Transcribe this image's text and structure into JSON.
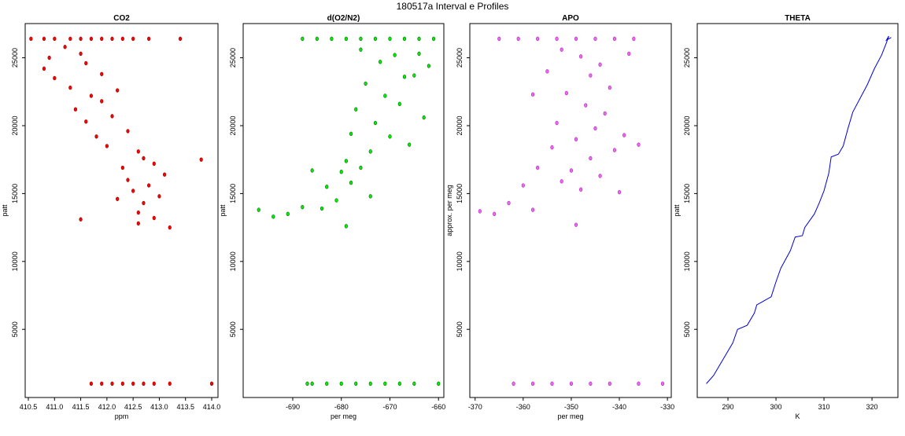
{
  "title": "180517a   Interval e Profiles",
  "chart_data": [
    {
      "type": "scatter",
      "title": "CO2",
      "xlabel": "ppm",
      "ylabel": "patt",
      "color": "#ff0000",
      "edgecolor": "#8b0000",
      "xlim": [
        410.44,
        414.12
      ],
      "ylim": [
        -20,
        27520
      ],
      "xticks": [
        410.5,
        {
          "value": 411,
          "label": "411.0"
        },
        411.5,
        {
          "value": 412,
          "label": "412.0"
        },
        412.5,
        {
          "value": 413,
          "label": "413.0"
        },
        413.5,
        {
          "value": 414,
          "label": "414.0"
        }
      ],
      "yticks": [
        5000,
        10000,
        15000,
        20000,
        25000
      ],
      "x": [
        410.55,
        410.8,
        411.0,
        411.3,
        411.5,
        411.7,
        411.9,
        412.1,
        412.3,
        412.5,
        412.8,
        413.4,
        411.2,
        410.9,
        411.5,
        410.8,
        411.6,
        411.0,
        411.9,
        411.3,
        411.7,
        412.2,
        411.4,
        411.9,
        411.6,
        412.1,
        411.8,
        412.4,
        412.0,
        412.6,
        412.7,
        412.3,
        412.9,
        412.4,
        412.8,
        413.1,
        412.5,
        412.2,
        412.7,
        413.0,
        412.6,
        412.9,
        413.2,
        412.6,
        411.5,
        413.8,
        411.7,
        411.9,
        412.1,
        412.3,
        412.5,
        412.7,
        412.9,
        413.2,
        414.0
      ],
      "y": [
        26400,
        26400,
        26400,
        26400,
        26400,
        26400,
        26400,
        26400,
        26400,
        26400,
        26400,
        26400,
        25800,
        25000,
        25300,
        24200,
        24600,
        23500,
        23800,
        22800,
        22200,
        22600,
        21200,
        21800,
        20300,
        20700,
        19200,
        19600,
        18500,
        18100,
        17600,
        16900,
        17200,
        16000,
        15600,
        16400,
        15200,
        14600,
        14300,
        14800,
        13600,
        13200,
        12500,
        12800,
        13100,
        17500,
        1000,
        1000,
        1000,
        1000,
        1000,
        1000,
        1000,
        1000,
        1000
      ]
    },
    {
      "type": "scatter",
      "title": "d(O2/N2)",
      "xlabel": "per meg",
      "ylabel": "patt",
      "color": "#00ee00",
      "edgecolor": "#006400",
      "xlim": [
        -700.2,
        -658.9
      ],
      "ylim": [
        -20,
        27520
      ],
      "xticks": [
        -690,
        -680,
        -670,
        -660
      ],
      "yticks": [
        5000,
        10000,
        15000,
        20000,
        25000
      ],
      "x": [
        -688,
        -685,
        -682,
        -679,
        -676,
        -673,
        -670,
        -667,
        -664,
        -661,
        -676,
        -669,
        -664,
        -662,
        -672,
        -667,
        -675,
        -665,
        -671,
        -677,
        -668,
        -673,
        -663,
        -678,
        -670,
        -666,
        -674,
        -679,
        -680,
        -676,
        -683,
        -678,
        -686,
        -681,
        -688,
        -691,
        -684,
        -694,
        -697,
        -679,
        -674,
        -687,
        -686,
        -683,
        -680,
        -677,
        -674,
        -671,
        -668,
        -665,
        -660
      ],
      "y": [
        26400,
        26400,
        26400,
        26400,
        26400,
        26400,
        26400,
        26400,
        26400,
        26400,
        25600,
        25200,
        25300,
        24400,
        24700,
        23600,
        23100,
        23700,
        22200,
        21200,
        21600,
        20200,
        20600,
        19400,
        19200,
        18600,
        18100,
        17400,
        16600,
        16900,
        15500,
        15800,
        16700,
        14500,
        14000,
        13500,
        13900,
        13300,
        13800,
        12600,
        14800,
        1000,
        1000,
        1000,
        1000,
        1000,
        1000,
        1000,
        1000,
        1000,
        1000
      ]
    },
    {
      "type": "scatter",
      "title": "APO",
      "xlabel": "per meg",
      "ylabel": "approx. per meg",
      "color": "#ee66ee",
      "edgecolor": "#aa22bb",
      "xlim": [
        -371.1,
        -329.2
      ],
      "ylim": [
        -20,
        27520
      ],
      "xticks": [
        -370,
        -360,
        -350,
        -340,
        -330
      ],
      "yticks": [
        5000,
        10000,
        15000,
        20000,
        25000
      ],
      "x": [
        -365,
        -361,
        -357,
        -353,
        -349,
        -345,
        -341,
        -337,
        -352,
        -348,
        -344,
        -338,
        -355,
        -346,
        -342,
        -351,
        -358,
        -347,
        -343,
        -353,
        -345,
        -339,
        -349,
        -354,
        -341,
        -336,
        -346,
        -350,
        -357,
        -344,
        -352,
        -348,
        -360,
        -340,
        -363,
        -366,
        -358,
        -369,
        -349,
        -362,
        -358,
        -354,
        -350,
        -346,
        -342,
        -336,
        -331
      ],
      "y": [
        26400,
        26400,
        26400,
        26400,
        26400,
        26400,
        26400,
        26400,
        25600,
        25100,
        24500,
        25300,
        24000,
        23700,
        22800,
        22400,
        22300,
        21500,
        20900,
        20200,
        19800,
        19300,
        19000,
        18400,
        18200,
        18600,
        17600,
        16700,
        16900,
        16300,
        15900,
        15300,
        15600,
        15100,
        14300,
        13500,
        13800,
        13700,
        12700,
        1000,
        1000,
        1000,
        1000,
        1000,
        1000,
        1000,
        1000
      ]
    },
    {
      "type": "line",
      "title": "THETA",
      "xlabel": "K",
      "ylabel": "patt",
      "color": "#0000dd",
      "xlim": [
        283.6,
        325.4
      ],
      "ylim": [
        -20,
        27520
      ],
      "xticks": [
        290,
        300,
        310,
        320
      ],
      "yticks": [
        5000,
        10000,
        15000,
        20000,
        25000
      ],
      "x": [
        285.5,
        287,
        289,
        291,
        292,
        294,
        295.5,
        296,
        297,
        299,
        300,
        301,
        303,
        304,
        305.5,
        306,
        308,
        309,
        310,
        311,
        311.5,
        313,
        314,
        315,
        316,
        317.5,
        319,
        320.5,
        322,
        323,
        323.5,
        323,
        324
      ],
      "y": [
        1000,
        1600,
        2800,
        4000,
        5000,
        5300,
        6200,
        6800,
        7000,
        7400,
        8500,
        9500,
        10800,
        11800,
        11900,
        12500,
        13500,
        14300,
        15200,
        16500,
        17700,
        17900,
        18500,
        19800,
        21000,
        22000,
        23000,
        24200,
        25200,
        26100,
        26600,
        26300,
        26500
      ]
    }
  ]
}
